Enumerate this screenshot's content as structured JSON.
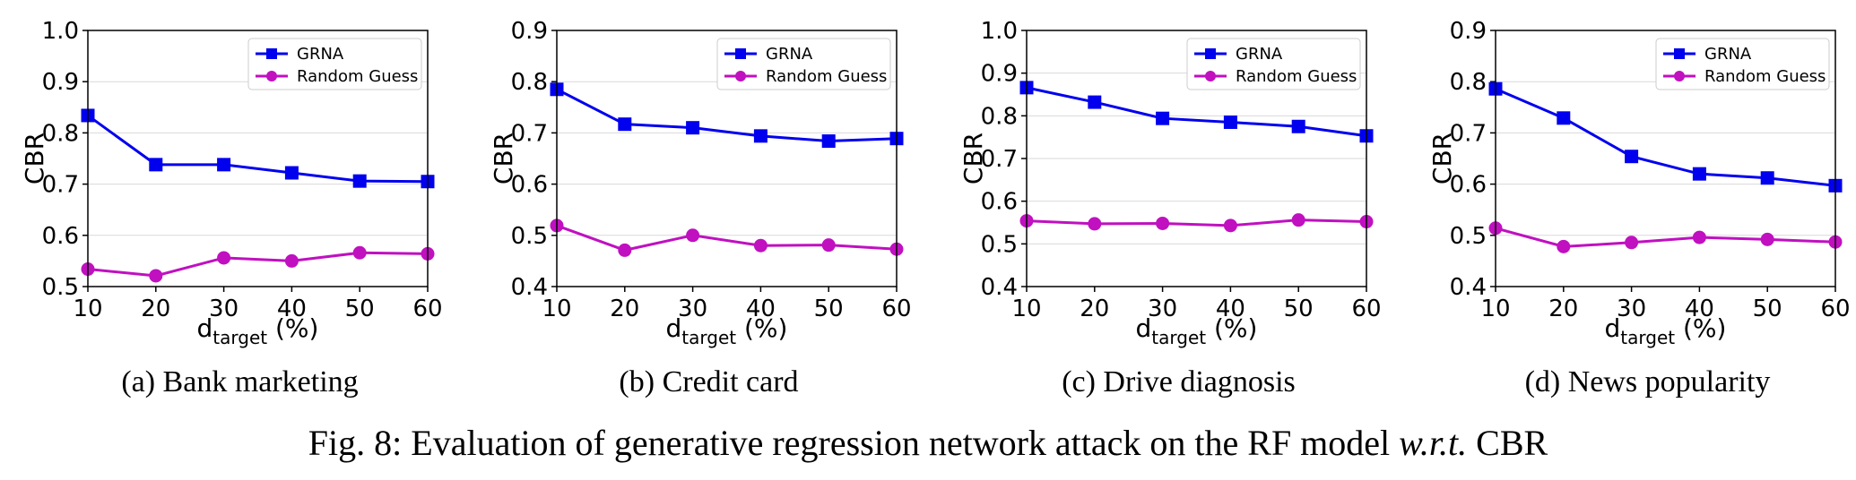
{
  "figure": {
    "caption_pre": "Fig. 8: Evaluation of generative regression network attack on the RF model ",
    "caption_italic": "w.r.t.",
    "caption_post": " CBR"
  },
  "colors": {
    "grna": "#0000ee",
    "random": "#c010c0",
    "grid": "#d9d9d9",
    "axis": "#000000"
  },
  "chart_data": [
    {
      "type": "line",
      "caption": "(a) Bank marketing",
      "x": [
        10,
        20,
        30,
        40,
        50,
        60
      ],
      "xticks": [
        10,
        20,
        30,
        40,
        50,
        60
      ],
      "xlim": [
        10,
        60
      ],
      "ylim": [
        0.5,
        1.0
      ],
      "yticks": [
        0.5,
        0.6,
        0.7,
        0.8,
        0.9,
        1.0
      ],
      "ylabel": "CBR",
      "xlabel_main": "d",
      "xlabel_sub": "target",
      "xlabel_rest": " (%)",
      "legend_position": "top-right",
      "grid": "horizontal",
      "series": [
        {
          "name": "GRNA",
          "marker": "square",
          "values": [
            0.834,
            0.738,
            0.738,
            0.722,
            0.706,
            0.705
          ]
        },
        {
          "name": "Random Guess",
          "marker": "circle",
          "values": [
            0.534,
            0.521,
            0.556,
            0.55,
            0.566,
            0.564
          ]
        }
      ]
    },
    {
      "type": "line",
      "caption": "(b) Credit card",
      "x": [
        10,
        20,
        30,
        40,
        50,
        60
      ],
      "xticks": [
        10,
        20,
        30,
        40,
        50,
        60
      ],
      "xlim": [
        10,
        60
      ],
      "ylim": [
        0.4,
        0.9
      ],
      "yticks": [
        0.4,
        0.5,
        0.6,
        0.7,
        0.8,
        0.9
      ],
      "ylabel": "CBR",
      "xlabel_main": "d",
      "xlabel_sub": "target",
      "xlabel_rest": " (%)",
      "legend_position": "top-right",
      "grid": "horizontal",
      "series": [
        {
          "name": "GRNA",
          "marker": "square",
          "values": [
            0.785,
            0.717,
            0.71,
            0.694,
            0.684,
            0.689
          ]
        },
        {
          "name": "Random Guess",
          "marker": "circle",
          "values": [
            0.519,
            0.471,
            0.5,
            0.48,
            0.481,
            0.473
          ]
        }
      ]
    },
    {
      "type": "line",
      "caption": "(c) Drive diagnosis",
      "x": [
        10,
        20,
        30,
        40,
        50,
        60
      ],
      "xticks": [
        10,
        20,
        30,
        40,
        50,
        60
      ],
      "xlim": [
        10,
        60
      ],
      "ylim": [
        0.4,
        1.0
      ],
      "yticks": [
        0.4,
        0.5,
        0.6,
        0.7,
        0.8,
        0.9,
        1.0
      ],
      "ylabel": "CBR",
      "xlabel_main": "d",
      "xlabel_sub": "target",
      "xlabel_rest": " (%)",
      "legend_position": "top-right",
      "grid": "horizontal",
      "series": [
        {
          "name": "GRNA",
          "marker": "square",
          "values": [
            0.866,
            0.832,
            0.794,
            0.785,
            0.775,
            0.753
          ]
        },
        {
          "name": "Random Guess",
          "marker": "circle",
          "values": [
            0.554,
            0.547,
            0.548,
            0.543,
            0.556,
            0.552
          ]
        }
      ]
    },
    {
      "type": "line",
      "caption": "(d) News popularity",
      "x": [
        10,
        20,
        30,
        40,
        50,
        60
      ],
      "xticks": [
        10,
        20,
        30,
        40,
        50,
        60
      ],
      "xlim": [
        10,
        60
      ],
      "ylim": [
        0.4,
        0.9
      ],
      "yticks": [
        0.4,
        0.5,
        0.6,
        0.7,
        0.8,
        0.9
      ],
      "ylabel": "CBR",
      "xlabel_main": "d",
      "xlabel_sub": "target",
      "xlabel_rest": " (%)",
      "legend_position": "top-right",
      "grid": "horizontal",
      "series": [
        {
          "name": "GRNA",
          "marker": "square",
          "values": [
            0.786,
            0.729,
            0.654,
            0.62,
            0.612,
            0.597
          ]
        },
        {
          "name": "Random Guess",
          "marker": "circle",
          "values": [
            0.514,
            0.478,
            0.486,
            0.496,
            0.492,
            0.487
          ]
        }
      ]
    }
  ]
}
